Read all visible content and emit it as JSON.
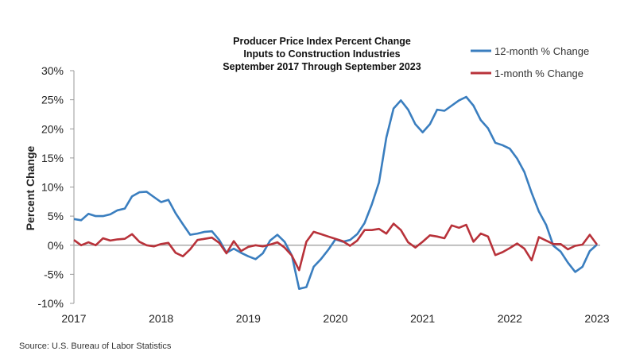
{
  "chart_data": {
    "type": "line",
    "title": [
      "Producer Price Index Percent Change",
      "Inputs to Construction Industries",
      "September 2017 Through September 2023"
    ],
    "ylabel": "Percent Change",
    "xlabel": "",
    "x_tick_labels": [
      "2017",
      "2018",
      "2019",
      "2020",
      "2021",
      "2022",
      "2023"
    ],
    "y_tick_labels": [
      "30%",
      "25%",
      "20%",
      "15%",
      "10%",
      "5%",
      "0%",
      "-5%",
      "-10%"
    ],
    "ylim": [
      -10,
      30
    ],
    "x_range": [
      "Sep 2017",
      "Sep 2023"
    ],
    "frequency": "monthly",
    "grid": false,
    "legend_position": "top-right",
    "series": [
      {
        "name": "12-month % Change",
        "color": "#3a7ebf",
        "values": [
          4.5,
          4.3,
          5.4,
          5.0,
          5.0,
          5.3,
          6.0,
          6.3,
          8.4,
          9.1,
          9.2,
          8.3,
          7.4,
          7.8,
          5.5,
          3.6,
          1.8,
          2.0,
          2.3,
          2.4,
          0.9,
          -1.3,
          -0.6,
          -1.3,
          -1.9,
          -2.4,
          -1.4,
          0.8,
          1.8,
          0.6,
          -1.8,
          -7.5,
          -7.2,
          -3.7,
          -2.4,
          -0.8,
          1.0,
          0.6,
          0.9,
          1.9,
          3.8,
          7.0,
          10.8,
          18.5,
          23.5,
          24.9,
          23.3,
          20.8,
          19.4,
          20.8,
          23.3,
          23.1,
          24.0,
          24.9,
          25.5,
          24.0,
          21.5,
          20.1,
          17.6,
          17.2,
          16.6,
          14.9,
          12.6,
          9.0,
          5.8,
          3.5,
          -0.1,
          -1.1,
          -3.0,
          -4.6,
          -3.7,
          -1.0,
          0.1
        ]
      },
      {
        "name": "1-month % Change",
        "color": "#b8323a",
        "values": [
          0.9,
          0.0,
          0.5,
          0.0,
          1.2,
          0.8,
          1.0,
          1.1,
          1.9,
          0.6,
          0.0,
          -0.2,
          0.2,
          0.4,
          -1.3,
          -1.9,
          -0.7,
          0.9,
          1.1,
          1.3,
          0.4,
          -1.4,
          0.7,
          -1.0,
          -0.3,
          0.0,
          -0.2,
          0.1,
          0.5,
          -0.4,
          -1.8,
          -4.3,
          0.6,
          2.3,
          1.9,
          1.5,
          1.1,
          0.7,
          -0.1,
          0.8,
          2.6,
          2.6,
          2.8,
          2.0,
          3.7,
          2.6,
          0.5,
          -0.4,
          0.6,
          1.7,
          1.5,
          1.2,
          3.4,
          3.0,
          3.5,
          0.6,
          2.0,
          1.5,
          -1.7,
          -1.2,
          -0.5,
          0.3,
          -0.6,
          -2.6,
          1.4,
          0.8,
          0.2,
          0.2,
          -0.7,
          -0.1,
          0.1,
          1.8,
          0.1
        ]
      }
    ]
  },
  "source": "Source: U.S. Bureau of Labor Statistics"
}
